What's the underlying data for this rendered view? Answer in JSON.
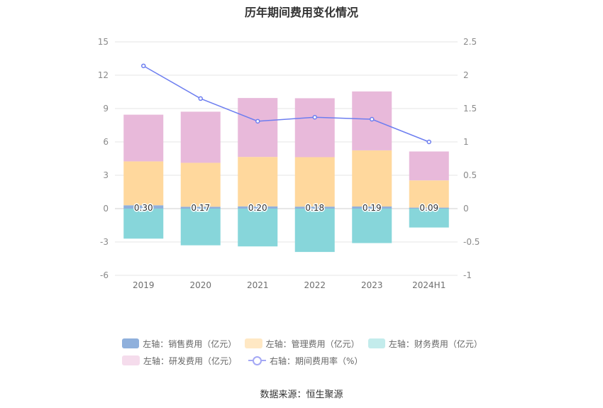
{
  "title": "历年期间费用变化情况",
  "source": "数据来源：恒生聚源",
  "colors": {
    "sales": "#8fb0dc",
    "mgmt": "#ffd89d",
    "finance": "#87d6da",
    "rd": "#e8b9da",
    "rate": "#6d7ef0",
    "grid": "#e6e6e6"
  },
  "legend": [
    {
      "label": "左轴：销售费用（亿元）",
      "color": "#8fb0dc",
      "type": "box",
      "row": 0
    },
    {
      "label": "左轴：管理费用（亿元）",
      "color": "#ffe8c4",
      "type": "box",
      "row": 0
    },
    {
      "label": "左轴：财务费用（亿元）",
      "color": "#c3ecec",
      "type": "box",
      "row": 0
    },
    {
      "label": "左轴：研发费用（亿元）",
      "color": "#f5dcec",
      "type": "box",
      "row": 1
    },
    {
      "label": "右轴：期间费用率（%）",
      "color": "#a4a8f5",
      "type": "line",
      "row": 1
    }
  ],
  "chart_data": {
    "type": "bar",
    "title": "历年期间费用变化情况",
    "categories": [
      "2019",
      "2020",
      "2021",
      "2022",
      "2023",
      "2024H1"
    ],
    "series": [
      {
        "name": "左轴：销售费用（亿元）",
        "axis": "left",
        "stack": true,
        "values": [
          0.3,
          0.17,
          0.2,
          0.18,
          0.19,
          0.09
        ]
      },
      {
        "name": "左轴：管理费用（亿元）",
        "axis": "left",
        "stack": true,
        "values": [
          3.95,
          3.95,
          4.45,
          4.45,
          5.05,
          2.45
        ]
      },
      {
        "name": "左轴：研发费用（亿元）",
        "axis": "left",
        "stack": true,
        "values": [
          4.2,
          4.6,
          5.3,
          5.3,
          5.3,
          2.6
        ]
      },
      {
        "name": "左轴：财务费用（亿元）",
        "axis": "left",
        "stack": true,
        "values": [
          -2.7,
          -3.3,
          -3.4,
          -3.9,
          -3.1,
          -1.7
        ]
      },
      {
        "name": "右轴：期间费用率（%）",
        "axis": "right",
        "type": "line",
        "values": [
          2.14,
          1.65,
          1.31,
          1.37,
          1.34,
          1.0
        ]
      }
    ],
    "data_labels": [
      "0.30",
      "0.17",
      "0.20",
      "0.18",
      "0.19",
      "0.09"
    ],
    "left_axis": {
      "min": -6,
      "max": 15,
      "ticks": [
        "-6",
        "-3",
        "0",
        "3",
        "6",
        "9",
        "12",
        "15"
      ]
    },
    "right_axis": {
      "min": -1,
      "max": 2.5,
      "ticks": [
        "-1",
        "-0.5",
        "0",
        "0.5",
        "1",
        "1.5",
        "2",
        "2.5"
      ]
    },
    "grid": true,
    "legend_position": "bottom"
  }
}
